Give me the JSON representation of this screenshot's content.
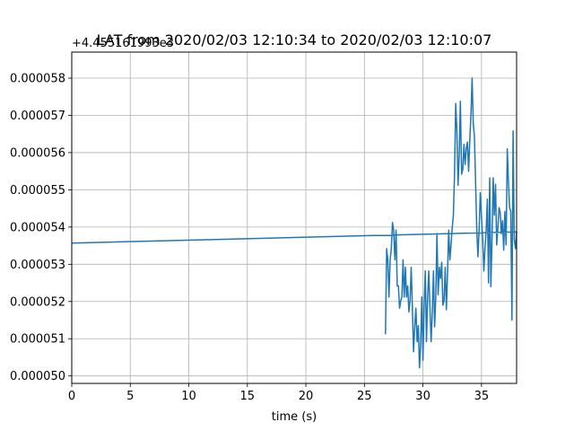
{
  "chart_data": {
    "type": "line",
    "title": "LAT from 2020/02/03 12:10:34 to 2020/02/03 12:10:07",
    "offset_label": "+4.455161993e3",
    "xlabel": "time (s)",
    "ylabel": "",
    "xlim": [
      0,
      38
    ],
    "ylim": [
      4.98e-05,
      5.87e-05
    ],
    "x_ticks": [
      0,
      5,
      10,
      15,
      20,
      25,
      30,
      35
    ],
    "y_ticks": [
      5e-05,
      5.1e-05,
      5.2e-05,
      5.3e-05,
      5.4e-05,
      5.5e-05,
      5.6e-05,
      5.7e-05,
      5.8e-05
    ],
    "y_tick_labels": [
      "0.000050",
      "0.000051",
      "0.000052",
      "0.000053",
      "0.000054",
      "0.000055",
      "0.000056",
      "0.000057",
      "0.000058"
    ],
    "grid": true,
    "series": [
      {
        "color": "#1f77b4",
        "x": [
          0.0,
          38.0,
          37.9,
          37.8,
          37.7,
          37.6,
          37.5,
          37.4,
          37.3,
          37.2,
          37.1,
          37.0,
          36.9,
          36.8,
          36.7,
          36.6,
          36.5,
          36.4,
          36.3,
          36.2,
          36.1,
          36.0,
          35.9,
          35.8,
          35.7,
          35.6,
          35.5,
          35.4,
          35.3,
          35.2,
          35.1,
          35.0,
          34.9,
          34.8,
          34.7,
          34.6,
          34.5,
          34.4,
          34.3,
          34.2,
          34.1,
          34.0,
          33.9,
          33.8,
          33.7,
          33.6,
          33.5,
          33.4,
          33.3,
          33.2,
          33.1,
          33.0,
          32.9,
          32.8,
          32.7,
          32.6,
          32.5,
          32.4,
          32.3,
          32.2,
          32.1,
          32.0,
          31.9,
          31.8,
          31.7,
          31.6,
          31.5,
          31.4,
          31.3,
          31.2,
          31.1,
          31.0,
          30.9,
          30.8,
          30.7,
          30.6,
          30.5,
          30.4,
          30.3,
          30.2,
          30.1,
          30.0,
          29.9,
          29.8,
          29.7,
          29.6,
          29.5,
          29.4,
          29.3,
          29.2,
          29.1,
          29.0,
          28.9,
          28.8,
          28.7,
          28.6,
          28.5,
          28.4,
          28.3,
          28.2,
          28.1,
          28.0,
          27.9,
          27.8,
          27.7,
          27.6,
          27.5,
          27.4,
          27.3,
          27.2,
          27.1,
          27.0,
          26.9,
          26.8
        ],
        "y": [
          5.357e-05,
          5.387e-05,
          5.342e-05,
          5.367e-05,
          5.658e-05,
          5.15e-05,
          5.442e-05,
          5.452e-05,
          5.522e-05,
          5.61e-05,
          5.352e-05,
          5.442e-05,
          5.338e-05,
          5.417e-05,
          5.382e-05,
          5.44e-05,
          5.452e-05,
          5.398e-05,
          5.352e-05,
          5.515e-05,
          5.432e-05,
          5.532e-05,
          5.367e-05,
          5.24e-05,
          5.532e-05,
          5.25e-05,
          5.475e-05,
          5.392e-05,
          5.345e-05,
          5.282e-05,
          5.372e-05,
          5.43e-05,
          5.492e-05,
          5.392e-05,
          5.32e-05,
          5.393e-05,
          5.518e-05,
          5.642e-05,
          5.678e-05,
          5.8e-05,
          5.702e-05,
          5.632e-05,
          5.55e-05,
          5.628e-05,
          5.612e-05,
          5.568e-05,
          5.622e-05,
          5.555e-05,
          5.542e-05,
          5.738e-05,
          5.592e-05,
          5.512e-05,
          5.66e-05,
          5.732e-05,
          5.542e-05,
          5.432e-05,
          5.398e-05,
          5.352e-05,
          5.312e-05,
          5.392e-05,
          5.278e-05,
          5.178e-05,
          5.292e-05,
          5.202e-05,
          5.19e-05,
          5.305e-05,
          5.262e-05,
          5.292e-05,
          5.218e-05,
          5.382e-05,
          5.212e-05,
          5.132e-05,
          5.282e-05,
          5.172e-05,
          5.092e-05,
          5.182e-05,
          5.282e-05,
          5.212e-05,
          5.092e-05,
          5.282e-05,
          5.192e-05,
          5.042e-05,
          5.212e-05,
          5.082e-05,
          5.022e-05,
          5.135e-05,
          5.092e-05,
          5.182e-05,
          5.132e-05,
          5.065e-05,
          5.182e-05,
          5.292e-05,
          5.202e-05,
          5.172e-05,
          5.242e-05,
          5.212e-05,
          5.292e-05,
          5.212e-05,
          5.312e-05,
          5.212e-05,
          5.202e-05,
          5.182e-05,
          5.242e-05,
          5.242e-05,
          5.392e-05,
          5.312e-05,
          5.392e-05,
          5.412e-05,
          5.342e-05,
          5.312e-05,
          5.212e-05,
          5.312e-05,
          5.342e-05,
          5.112e-05
        ]
      }
    ]
  }
}
